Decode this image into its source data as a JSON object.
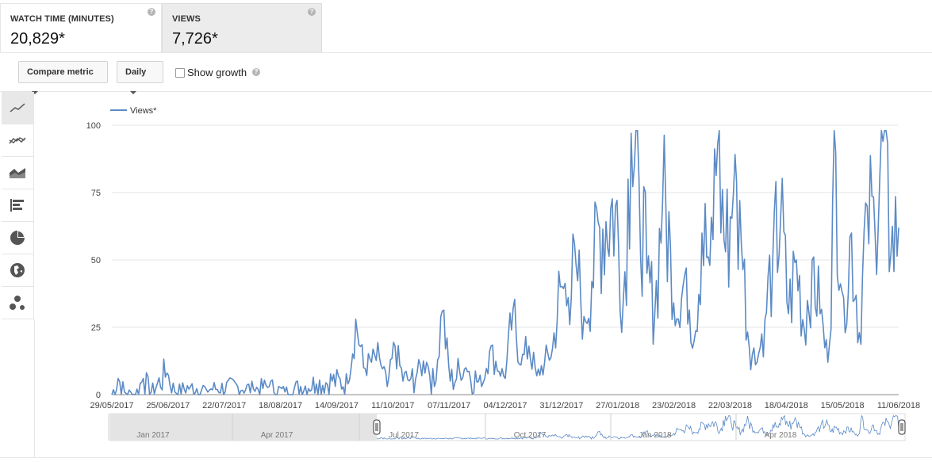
{
  "metrics": [
    {
      "label": "WATCH TIME (MINUTES)",
      "value": "20,829*",
      "selected": false
    },
    {
      "label": "VIEWS",
      "value": "7,726*",
      "selected": true
    }
  ],
  "controls": {
    "compare_label": "Compare metric",
    "interval_label": "Daily",
    "show_growth_label": "Show growth",
    "help_glyph": "?"
  },
  "chart_tools": [
    {
      "name": "line-chart-icon",
      "active": true
    },
    {
      "name": "multi-line-chart-icon",
      "active": false
    },
    {
      "name": "stacked-area-chart-icon",
      "active": false
    },
    {
      "name": "bar-chart-icon",
      "active": false
    },
    {
      "name": "pie-chart-icon",
      "active": false
    },
    {
      "name": "globe-map-icon",
      "active": false
    },
    {
      "name": "bubble-chart-icon",
      "active": false
    }
  ],
  "chart_data": {
    "type": "line",
    "series": [
      {
        "name": "Views*",
        "color": "#5b8ac5",
        "x_start": "2017-05-29",
        "x_end": "2018-06-11",
        "x": [
          "2017-05-29",
          "2017-06-25",
          "2017-07-22",
          "2017-08-18",
          "2017-09-14",
          "2017-10-11",
          "2017-11-07",
          "2017-12-04",
          "2017-12-31",
          "2018-01-27",
          "2018-02-23",
          "2018-03-22",
          "2018-04-18",
          "2018-05-15",
          "2018-06-11"
        ],
        "anchors": [
          [
            0,
            0
          ],
          [
            4,
            6
          ],
          [
            8,
            1
          ],
          [
            15,
            0
          ],
          [
            20,
            6
          ],
          [
            25,
            1
          ],
          [
            35,
            8
          ],
          [
            40,
            1
          ],
          [
            50,
            3
          ],
          [
            60,
            2
          ],
          [
            80,
            3
          ],
          [
            90,
            2
          ],
          [
            100,
            3
          ],
          [
            110,
            1
          ],
          [
            120,
            3
          ],
          [
            130,
            4
          ],
          [
            140,
            5
          ],
          [
            150,
            4
          ],
          [
            155,
            28
          ],
          [
            160,
            10
          ],
          [
            170,
            14
          ],
          [
            175,
            3
          ],
          [
            180,
            18
          ],
          [
            185,
            5
          ],
          [
            190,
            6
          ],
          [
            200,
            12
          ],
          [
            205,
            3
          ],
          [
            210,
            31
          ],
          [
            215,
            5
          ],
          [
            225,
            10
          ],
          [
            235,
            3
          ],
          [
            240,
            16
          ],
          [
            250,
            6
          ],
          [
            255,
            32
          ],
          [
            260,
            11
          ],
          [
            265,
            18
          ],
          [
            270,
            7
          ],
          [
            275,
            12
          ],
          [
            280,
            17
          ],
          [
            285,
            40
          ],
          [
            290,
            36
          ],
          [
            295,
            48
          ],
          [
            300,
            29
          ],
          [
            305,
            42
          ],
          [
            310,
            62
          ],
          [
            320,
            70
          ],
          [
            325,
            35
          ],
          [
            330,
            97
          ],
          [
            335,
            80
          ],
          [
            340,
            45
          ],
          [
            345,
            30
          ],
          [
            350,
            72
          ],
          [
            355,
            55
          ],
          [
            360,
            28
          ],
          [
            365,
            47
          ],
          [
            370,
            20
          ],
          [
            375,
            60
          ],
          [
            380,
            48
          ],
          [
            385,
            93
          ],
          [
            390,
            53
          ],
          [
            395,
            75
          ],
          [
            400,
            56
          ],
          [
            405,
            18
          ],
          [
            410,
            12
          ],
          [
            415,
            28
          ],
          [
            420,
            51
          ],
          [
            425,
            66
          ],
          [
            430,
            30
          ],
          [
            435,
            50
          ],
          [
            440,
            24
          ],
          [
            445,
            50
          ],
          [
            450,
            30
          ],
          [
            455,
            12
          ],
          [
            460,
            90
          ],
          [
            465,
            36
          ],
          [
            470,
            60
          ],
          [
            475,
            23
          ],
          [
            480,
            70
          ],
          [
            485,
            60
          ],
          [
            490,
            94
          ],
          [
            495,
            52
          ],
          [
            500,
            62
          ]
        ],
        "n_points": 501
      }
    ],
    "x_tick_labels": [
      "29/05/2017",
      "25/06/2017",
      "22/07/2017",
      "18/08/2017",
      "14/09/2017",
      "11/10/2017",
      "07/11/2017",
      "04/12/2017",
      "31/12/2017",
      "27/01/2018",
      "23/02/2018",
      "22/03/2018",
      "18/04/2018",
      "15/05/2018",
      "11/06/2018"
    ],
    "y_tick_labels": [
      "0",
      "25",
      "50",
      "75",
      "100"
    ],
    "y_ticks": [
      0,
      25,
      50,
      75,
      100
    ],
    "ylim": [
      0,
      100
    ],
    "grid": true,
    "legend_position": "top-left",
    "navigator": {
      "labels": [
        "Jan 2017",
        "Apr 2017",
        "Jul 2017",
        "Oct 2017",
        "Jan 2018",
        "Apr 2018"
      ],
      "selection_start_label": "Jul 2017"
    }
  }
}
